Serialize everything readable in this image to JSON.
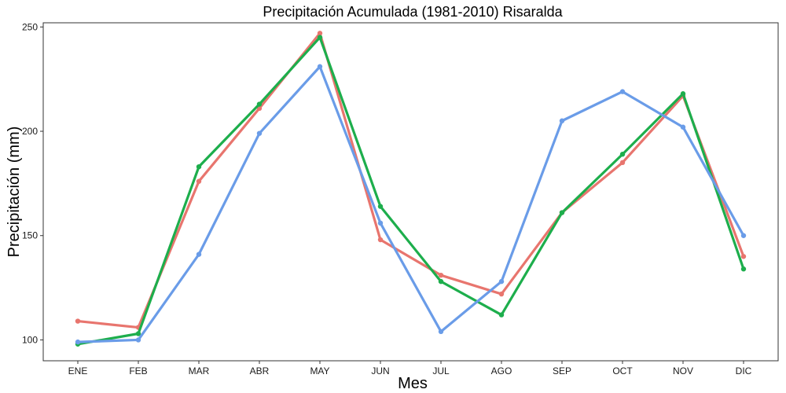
{
  "chart_data": {
    "type": "line",
    "title": "Precipitación Acumulada (1981-2010)  Risaralda",
    "xlabel": "Mes",
    "ylabel": "Precipitación  (mm)",
    "categories": [
      "ENE",
      "FEB",
      "MAR",
      "ABR",
      "MAY",
      "JUN",
      "JUL",
      "AGO",
      "SEP",
      "OCT",
      "NOV",
      "DIC"
    ],
    "ylim": [
      90,
      252
    ],
    "yticks": [
      100,
      150,
      200,
      250
    ],
    "grid": false,
    "legend": "none",
    "series": [
      {
        "color": "#E8756E",
        "values": [
          109,
          106,
          176,
          211,
          247,
          148,
          131,
          122,
          161,
          185,
          217,
          140
        ]
      },
      {
        "color": "#1DAE4C",
        "values": [
          98,
          103,
          183,
          213,
          245,
          164,
          128,
          112,
          161,
          189,
          218,
          134
        ]
      },
      {
        "color": "#6A9CE8",
        "values": [
          99,
          100,
          141,
          199,
          231,
          156,
          104,
          128,
          205,
          219,
          202,
          150
        ]
      }
    ]
  }
}
